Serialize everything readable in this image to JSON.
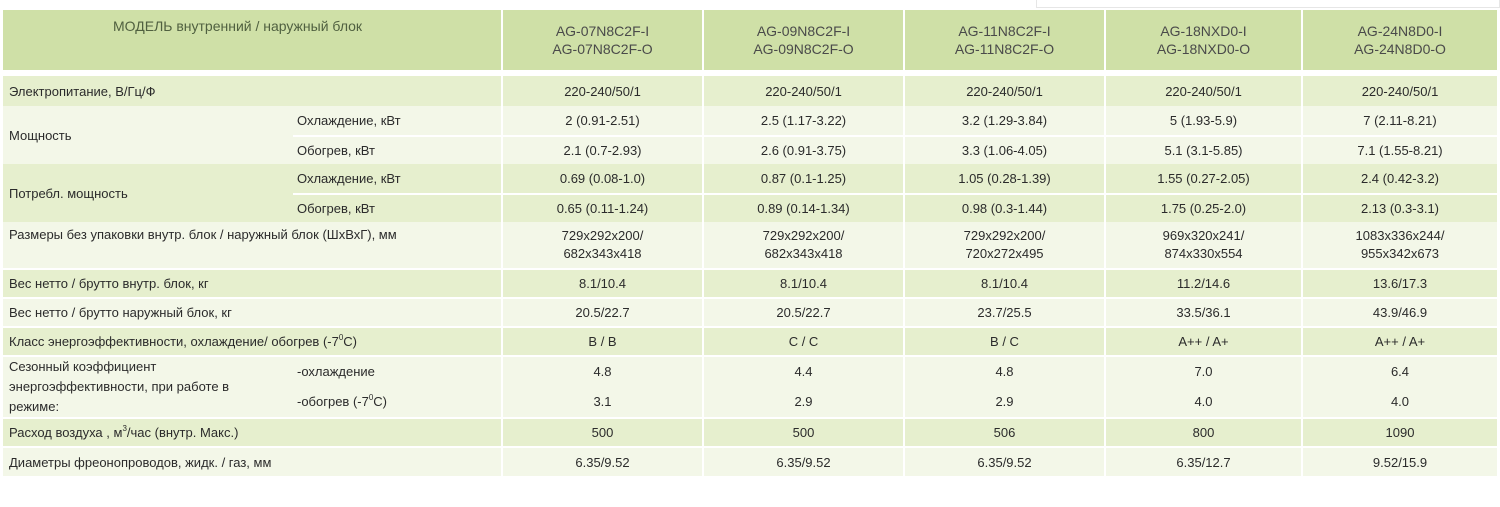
{
  "header": {
    "model_label": "МОДЕЛЬ  внутренний  /  наружный блок",
    "models": [
      {
        "indoor": "AG-07N8C2F-I",
        "outdoor": "AG-07N8C2F-O"
      },
      {
        "indoor": "AG-09N8C2F-I",
        "outdoor": "AG-09N8C2F-O"
      },
      {
        "indoor": "AG-11N8C2F-I",
        "outdoor": "AG-11N8C2F-O"
      },
      {
        "indoor": "AG-18NXD0-I",
        "outdoor": "AG-18NXD0-O"
      },
      {
        "indoor": "AG-24N8D0-I",
        "outdoor": "AG-24N8D0-O"
      }
    ]
  },
  "rows": {
    "power_supply": {
      "label": "Электропитание, В/Гц/Ф",
      "values": [
        "220-240/50/1",
        "220-240/50/1",
        "220-240/50/1",
        "220-240/50/1",
        "220-240/50/1"
      ]
    },
    "capacity": {
      "label": "Мощность",
      "cooling": {
        "label": "Охлаждение, кВт",
        "values": [
          "2 (0.91-2.51)",
          "2.5 (1.17-3.22)",
          "3.2 (1.29-3.84)",
          "5 (1.93-5.9)",
          "7 (2.11-8.21)"
        ]
      },
      "heating": {
        "label": "Обогрев, кВт",
        "values": [
          "2.1 (0.7-2.93)",
          "2.6 (0.91-3.75)",
          "3.3 (1.06-4.05)",
          "5.1 (3.1-5.85)",
          "7.1 (1.55-8.21)"
        ]
      }
    },
    "consumption": {
      "label": "Потребл. мощность",
      "cooling": {
        "label": "Охлаждение, кВт",
        "values": [
          "0.69 (0.08-1.0)",
          "0.87 (0.1-1.25)",
          "1.05 (0.28-1.39)",
          "1.55 (0.27-2.05)",
          "2.4 (0.42-3.2)"
        ]
      },
      "heating": {
        "label": "Обогрев, кВт",
        "values": [
          "0.65 (0.11-1.24)",
          "0.89 (0.14-1.34)",
          "0.98 (0.3-1.44)",
          "1.75 (0.25-2.0)",
          "2.13 (0.3-3.1)"
        ]
      }
    },
    "dimensions": {
      "label": "Размеры без упаковки внутр. блок / наружный блок  (ШхВхГ), мм",
      "values": [
        {
          "indoor": "729x292x200/",
          "outdoor": "682x343x418"
        },
        {
          "indoor": "729x292x200/",
          "outdoor": "682x343x418"
        },
        {
          "indoor": "729x292x200/",
          "outdoor": "720x272x495"
        },
        {
          "indoor": "969x320x241/",
          "outdoor": "874x330x554"
        },
        {
          "indoor": "1083x336x244/",
          "outdoor": "955x342x673"
        }
      ]
    },
    "weight_indoor": {
      "label": "Вес нетто / брутто внутр. блок, кг",
      "values": [
        "8.1/10.4",
        "8.1/10.4",
        "8.1/10.4",
        "11.2/14.6",
        "13.6/17.3"
      ]
    },
    "weight_outdoor": {
      "label": "Вес нетто / брутто наружный блок, кг",
      "values": [
        "20.5/22.7",
        "20.5/22.7",
        "23.7/25.5",
        "33.5/36.1",
        "43.9/46.9"
      ]
    },
    "energy_class": {
      "label_pre": "Класс энергоэффективности, охлаждение/ обогрев (-7",
      "label_sup": "0",
      "label_post": "С)",
      "values": [
        "B / B",
        "C / C",
        "B / C",
        "A++ / A+",
        "A++ / A+"
      ]
    },
    "seasonal": {
      "label_line1": "Сезонный коэффициент",
      "label_line2": "энергоэффективности, при работе в",
      "label_line3": "режиме:",
      "cooling": {
        "label": "-охлаждение",
        "values": [
          "4.8",
          "4.4",
          "4.8",
          "7.0",
          "6.4"
        ]
      },
      "heating": {
        "label_pre": "-обогрев  (-7",
        "label_sup": "0",
        "label_post": "С)",
        "values": [
          "3.1",
          "2.9",
          "2.9",
          "4.0",
          "4.0"
        ]
      }
    },
    "airflow": {
      "label_pre": "Расход воздуха , м",
      "label_sup": "3",
      "label_post": "/час (внутр. Макс.)",
      "values": [
        "500",
        "500",
        "506",
        "800",
        "1090"
      ]
    },
    "pipes": {
      "label": "Диаметры фреонопроводов, жидк. / газ, мм",
      "values": [
        "6.35/9.52",
        "6.35/9.52",
        "6.35/9.52",
        "6.35/12.7",
        "9.52/15.9"
      ]
    }
  }
}
